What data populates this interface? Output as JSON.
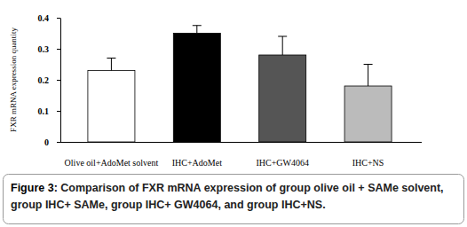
{
  "chart_data": {
    "type": "bar",
    "title": "Figure 3: Comparison of FXR mRNA expression of group olive oil + SAMe solvent, group IHC+ SAMe, group IHC+ GW4064, and group IHC+NS.",
    "y_label": "FXR mRNA expression quantity",
    "categories": [
      "Olive oil+AdoMet solvent",
      "IHC+AdoMet",
      "IHC+GW4064",
      "IHC+NS"
    ],
    "values": [
      0.23,
      0.35,
      0.28,
      0.18
    ],
    "errors": [
      0.04,
      0.025,
      0.06,
      0.07
    ],
    "colors": [
      "#ffffff",
      "#000000",
      "#555555",
      "#bbbbbb"
    ],
    "ylim": [
      0,
      0.4
    ],
    "yticks": [
      0,
      0.1,
      0.2,
      0.3,
      0.4
    ],
    "grid": false
  }
}
